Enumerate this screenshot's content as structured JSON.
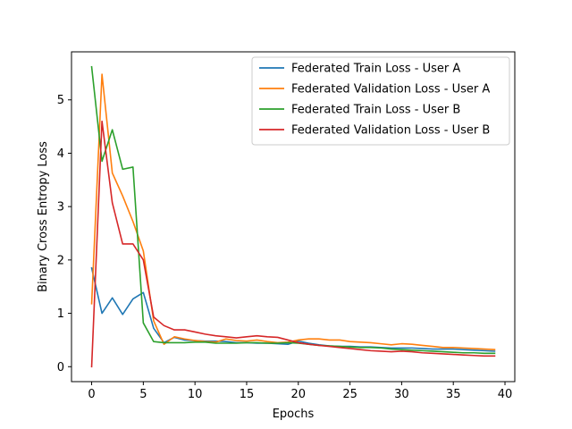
{
  "chart_data": {
    "type": "line",
    "xlabel": "Epochs",
    "ylabel": "Binary Cross Entropy Loss",
    "xlim": [
      -1.95,
      40.95
    ],
    "ylim": [
      -0.28,
      5.9
    ],
    "xticks": [
      0,
      5,
      10,
      15,
      20,
      25,
      30,
      35,
      40
    ],
    "yticks": [
      0,
      1,
      2,
      3,
      4,
      5
    ],
    "grid": false,
    "legend_position": "top-right",
    "x": [
      0,
      1,
      2,
      3,
      4,
      5,
      6,
      7,
      8,
      9,
      10,
      11,
      12,
      13,
      14,
      15,
      16,
      17,
      18,
      19,
      20,
      21,
      22,
      23,
      24,
      25,
      26,
      27,
      28,
      29,
      30,
      31,
      32,
      33,
      34,
      35,
      36,
      37,
      38,
      39
    ],
    "series": [
      {
        "name": "Federated Train Loss - User A",
        "color": "#1f77b4",
        "values": [
          1.85,
          1.0,
          1.29,
          0.98,
          1.27,
          1.39,
          0.72,
          0.45,
          0.55,
          0.5,
          0.49,
          0.48,
          0.48,
          0.47,
          0.45,
          0.45,
          0.44,
          0.44,
          0.43,
          0.42,
          0.48,
          0.44,
          0.41,
          0.39,
          0.38,
          0.38,
          0.37,
          0.37,
          0.36,
          0.35,
          0.35,
          0.35,
          0.34,
          0.33,
          0.33,
          0.33,
          0.32,
          0.31,
          0.3,
          0.29
        ]
      },
      {
        "name": "Federated Validation Loss - User A",
        "color": "#ff7f0e",
        "values": [
          1.18,
          5.48,
          3.63,
          3.2,
          2.72,
          2.17,
          0.86,
          0.42,
          0.56,
          0.52,
          0.49,
          0.47,
          0.46,
          0.52,
          0.49,
          0.48,
          0.5,
          0.47,
          0.45,
          0.46,
          0.5,
          0.52,
          0.52,
          0.5,
          0.5,
          0.47,
          0.46,
          0.45,
          0.43,
          0.41,
          0.43,
          0.42,
          0.4,
          0.38,
          0.36,
          0.36,
          0.35,
          0.34,
          0.33,
          0.32
        ]
      },
      {
        "name": "Federated Train Loss - User B",
        "color": "#2ca02c",
        "values": [
          5.62,
          3.85,
          4.44,
          3.7,
          3.74,
          0.82,
          0.47,
          0.45,
          0.45,
          0.45,
          0.46,
          0.46,
          0.44,
          0.44,
          0.44,
          0.45,
          0.45,
          0.44,
          0.44,
          0.45,
          0.44,
          0.42,
          0.4,
          0.39,
          0.38,
          0.37,
          0.36,
          0.36,
          0.35,
          0.33,
          0.32,
          0.31,
          0.3,
          0.29,
          0.28,
          0.27,
          0.26,
          0.26,
          0.25,
          0.25
        ]
      },
      {
        "name": "Federated Validation Loss - User B",
        "color": "#d62728",
        "values": [
          0.0,
          4.6,
          3.07,
          2.3,
          2.3,
          2.0,
          0.93,
          0.77,
          0.69,
          0.69,
          0.65,
          0.61,
          0.58,
          0.56,
          0.54,
          0.56,
          0.58,
          0.56,
          0.55,
          0.5,
          0.45,
          0.42,
          0.4,
          0.38,
          0.36,
          0.34,
          0.32,
          0.3,
          0.29,
          0.28,
          0.29,
          0.28,
          0.26,
          0.25,
          0.24,
          0.23,
          0.22,
          0.21,
          0.2,
          0.2
        ]
      }
    ]
  }
}
